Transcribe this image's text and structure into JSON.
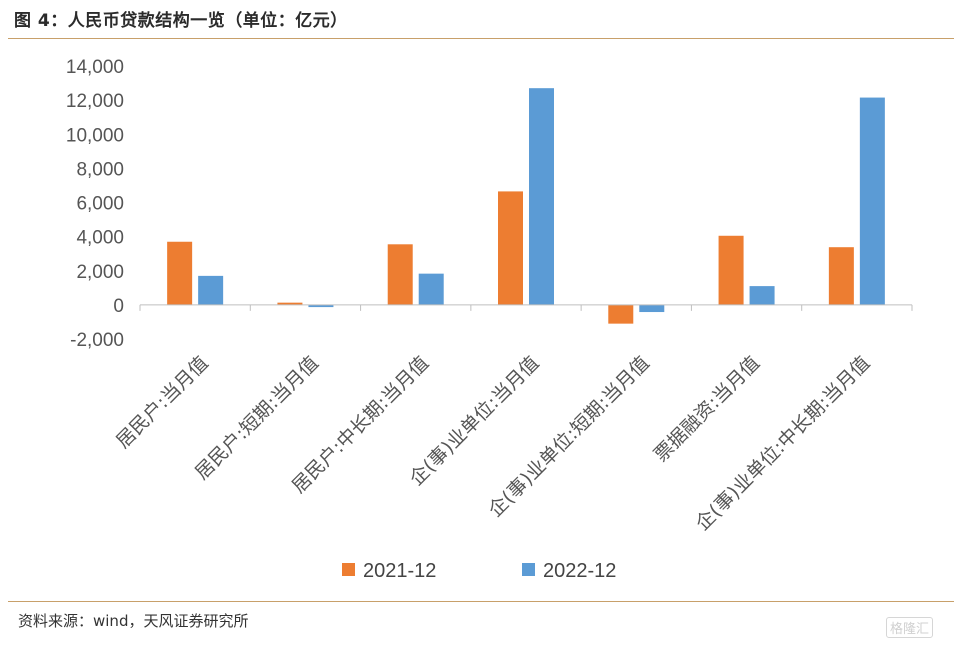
{
  "header": {
    "title": "图 4：人民币贷款结构一览（单位：亿元）"
  },
  "footer": {
    "source": "资料来源：wind，天风证券研究所"
  },
  "watermark": {
    "text": "格隆汇"
  },
  "colors": {
    "series_2021": "#ED7D31",
    "series_2022": "#5B9BD5",
    "rule": "#C8A06A"
  },
  "chart_data": {
    "type": "bar",
    "title": "图 4：人民币贷款结构一览（单位：亿元）",
    "xlabel": "",
    "ylabel": "",
    "ylim": [
      -2000,
      14000
    ],
    "yticks": [
      -2000,
      0,
      2000,
      4000,
      6000,
      8000,
      10000,
      12000,
      14000
    ],
    "ytick_labels": [
      "-2,000",
      "0",
      "2,000",
      "4,000",
      "6,000",
      "8,000",
      "10,000",
      "12,000",
      "14,000"
    ],
    "grid": false,
    "legend_position": "bottom",
    "categories": [
      "居民户:当月值",
      "居民户:短期:当月值",
      "居民户:中长期:当月值",
      "企(事)业单位:当月值",
      "企(事)业单位:短期:当月值",
      "票据融资:当月值",
      "企(事)业单位:中长期:当月值"
    ],
    "series": [
      {
        "name": "2021-12",
        "color": "#ED7D31",
        "values": [
          3700,
          130,
          3550,
          6650,
          -1100,
          4050,
          3380
        ]
      },
      {
        "name": "2022-12",
        "color": "#5B9BD5",
        "values": [
          1700,
          -130,
          1830,
          12700,
          -420,
          1100,
          12150
        ]
      }
    ]
  }
}
